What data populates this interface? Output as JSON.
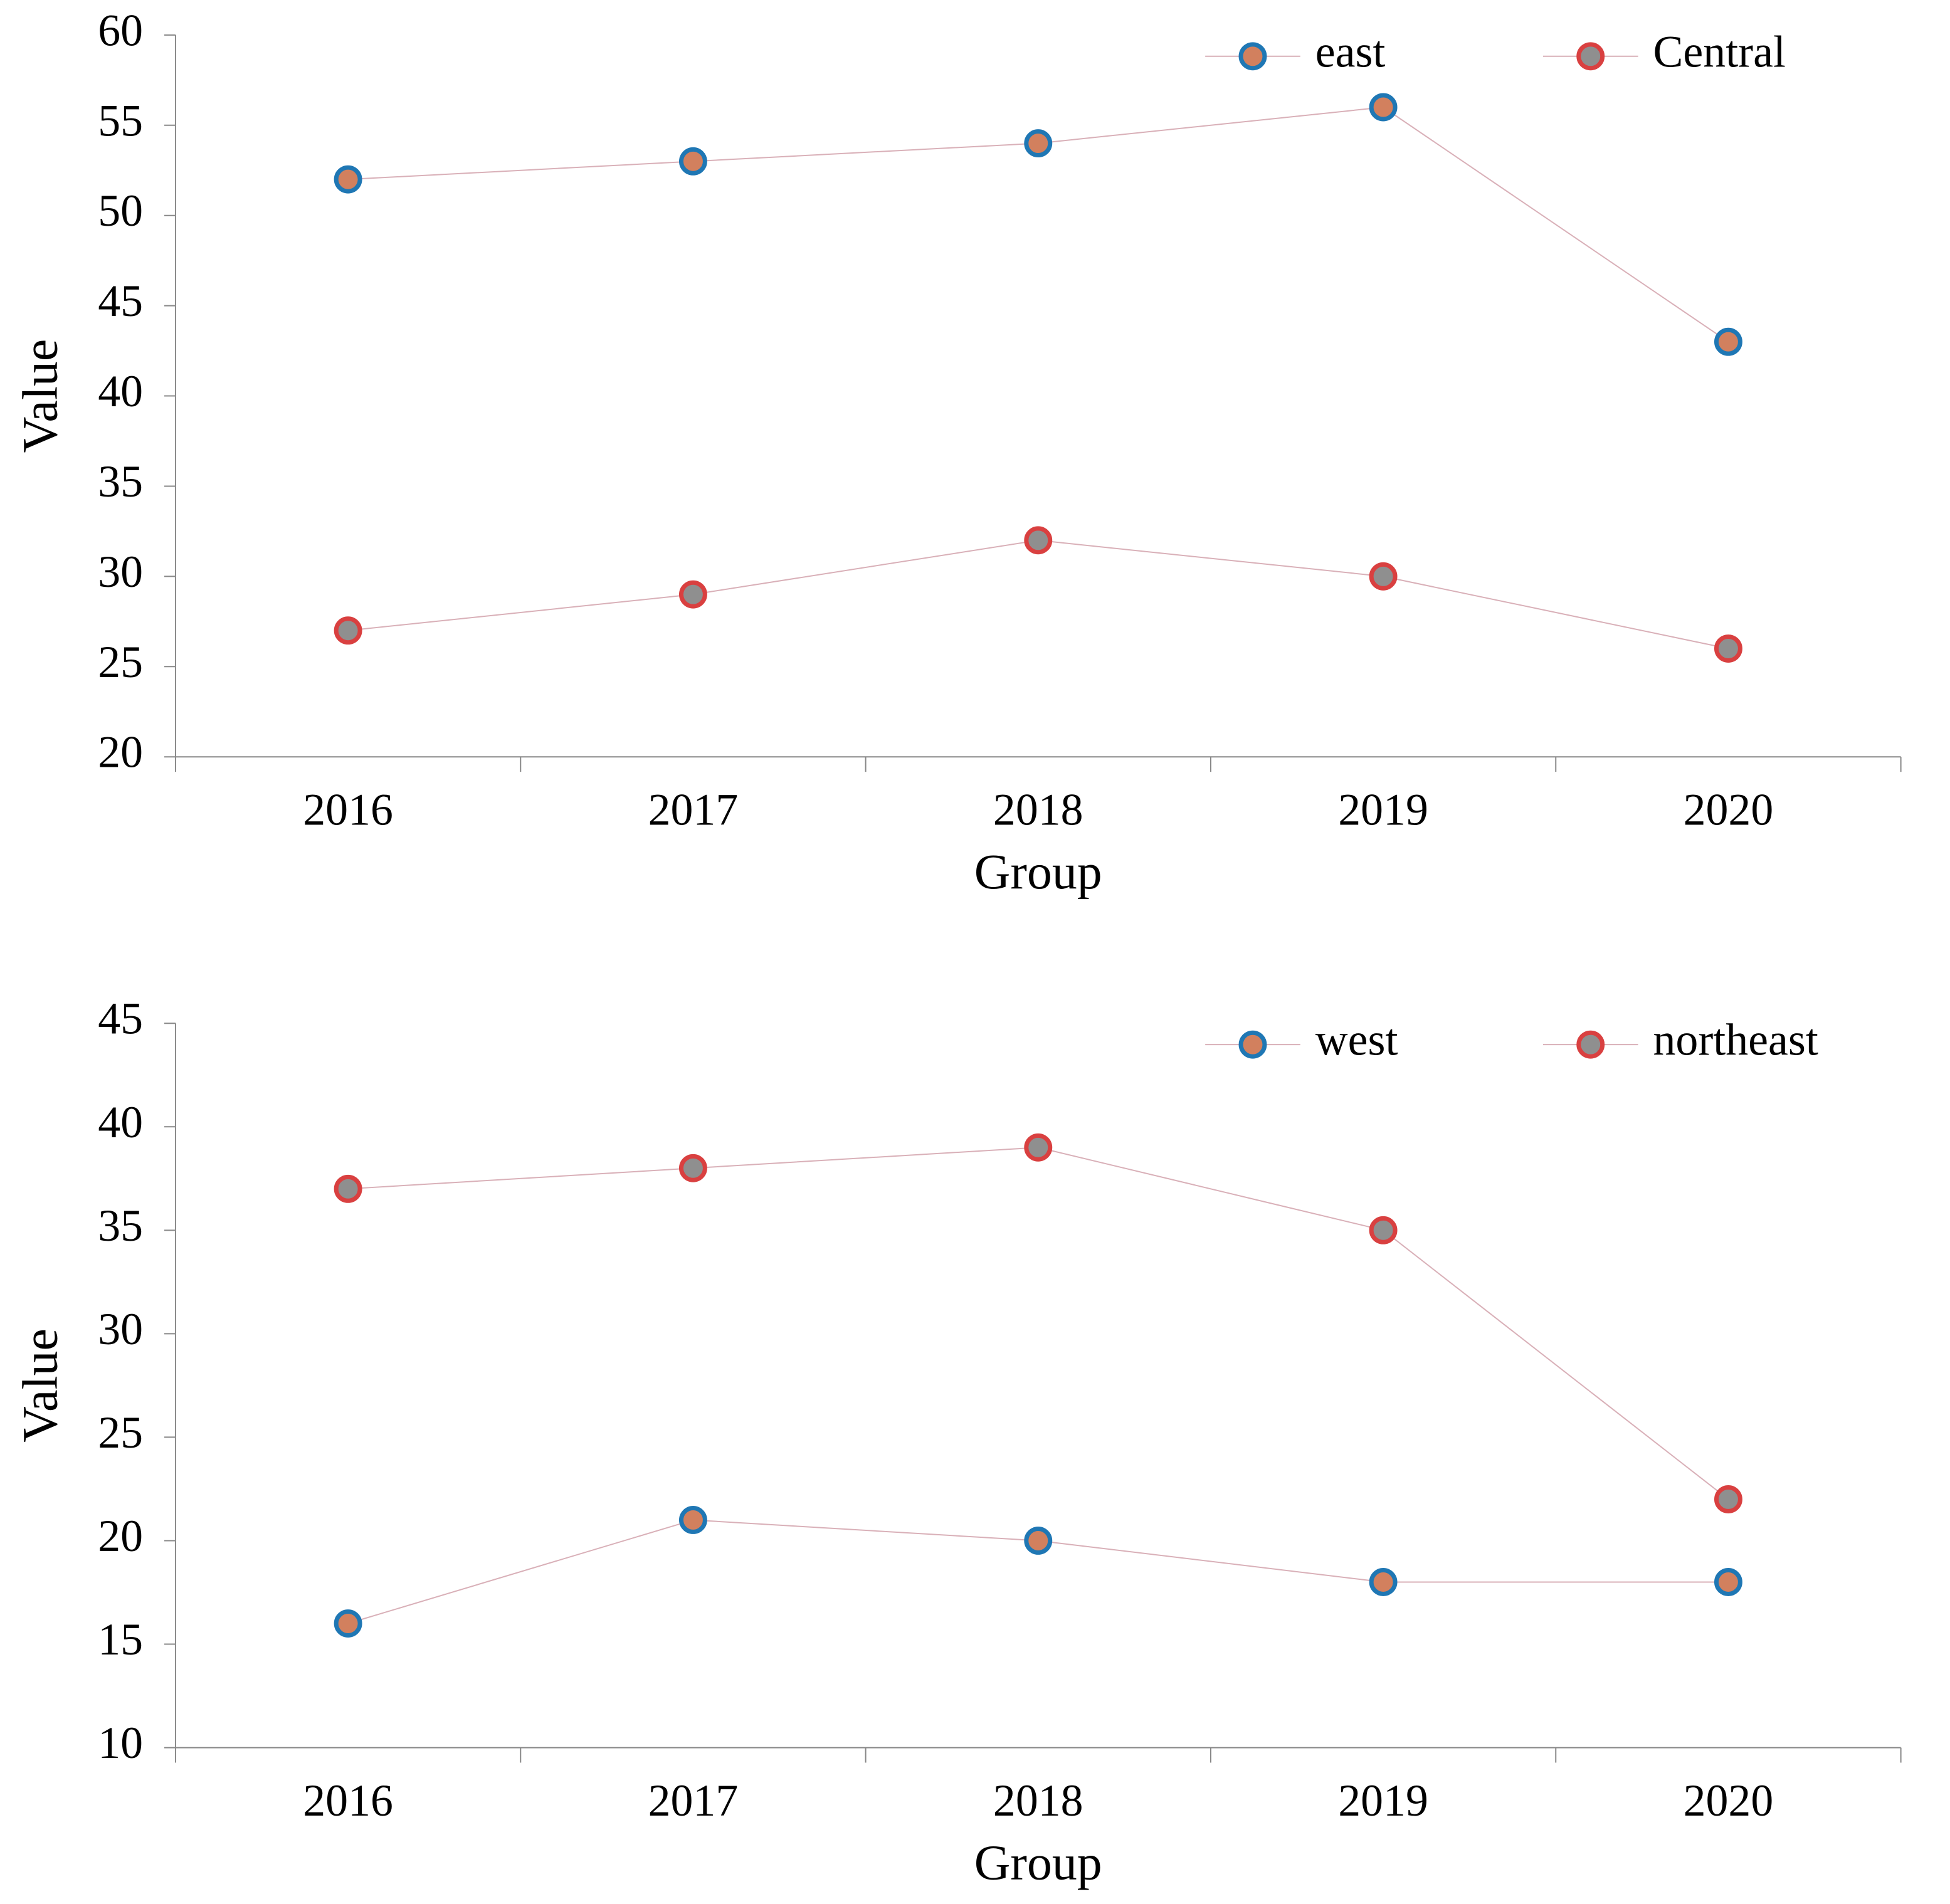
{
  "chart_data": [
    {
      "type": "line",
      "xlabel": "Group",
      "ylabel": "Value",
      "categories": [
        "2016",
        "2017",
        "2018",
        "2019",
        "2020"
      ],
      "series": [
        {
          "name": "east",
          "color": "#1f77b4",
          "marker_fill": "#d2805e",
          "values": [
            52,
            53,
            54,
            56,
            43
          ]
        },
        {
          "name": "Central",
          "color": "#d94040",
          "marker_fill": "#8f8f8f",
          "values": [
            27,
            29,
            32,
            30,
            26
          ]
        }
      ],
      "line_color": "#d9b0b8",
      "ylim": [
        20,
        60
      ],
      "yticks": [
        20,
        25,
        30,
        35,
        40,
        45,
        50,
        55,
        60
      ],
      "legend": "upper right"
    },
    {
      "type": "line",
      "xlabel": "Group",
      "ylabel": "Value",
      "categories": [
        "2016",
        "2017",
        "2018",
        "2019",
        "2020"
      ],
      "series": [
        {
          "name": "west",
          "color": "#1f77b4",
          "marker_fill": "#d2805e",
          "values": [
            16,
            21,
            20,
            18,
            18
          ]
        },
        {
          "name": "northeast",
          "color": "#d94040",
          "marker_fill": "#8f8f8f",
          "values": [
            37,
            38,
            39,
            35,
            22
          ]
        }
      ],
      "line_color": "#d9b0b8",
      "ylim": [
        10,
        45
      ],
      "yticks": [
        10,
        15,
        20,
        25,
        30,
        35,
        40,
        45
      ],
      "legend": "upper right"
    }
  ]
}
